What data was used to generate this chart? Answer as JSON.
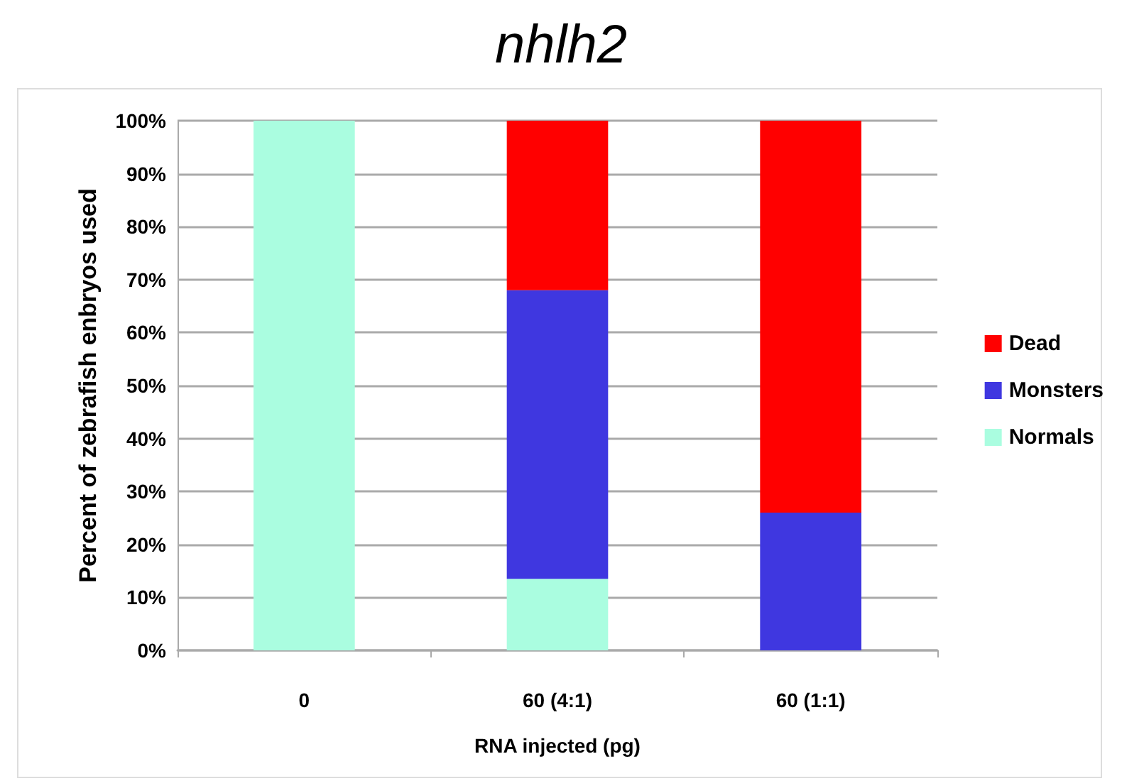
{
  "chart_data": {
    "type": "bar",
    "title": "nhlh2",
    "xlabel": "RNA injected (pg)",
    "ylabel": "Percent of zebrafish enbryos used",
    "categories": [
      "0",
      "60 (4:1)",
      "60 (1:1)"
    ],
    "series": [
      {
        "name": "Normals",
        "color": "#aafde0",
        "values": [
          100,
          13.5,
          0
        ]
      },
      {
        "name": "Monsters",
        "color": "#3f37e0",
        "values": [
          0,
          54.5,
          26
        ]
      },
      {
        "name": "Dead",
        "color": "#ff0000",
        "values": [
          0,
          32,
          74
        ]
      }
    ],
    "stacked": true,
    "ylim": [
      0,
      100
    ],
    "yticks": [
      {
        "value": 0,
        "label": "0%"
      },
      {
        "value": 10,
        "label": "10%"
      },
      {
        "value": 20,
        "label": "20%"
      },
      {
        "value": 30,
        "label": "30%"
      },
      {
        "value": 40,
        "label": "40%"
      },
      {
        "value": 50,
        "label": "50%"
      },
      {
        "value": 60,
        "label": "60%"
      },
      {
        "value": 70,
        "label": "70%"
      },
      {
        "value": 80,
        "label": "80%"
      },
      {
        "value": 90,
        "label": "90%"
      },
      {
        "value": 100,
        "label": "100%"
      }
    ],
    "grid": "y",
    "legend": "right"
  }
}
